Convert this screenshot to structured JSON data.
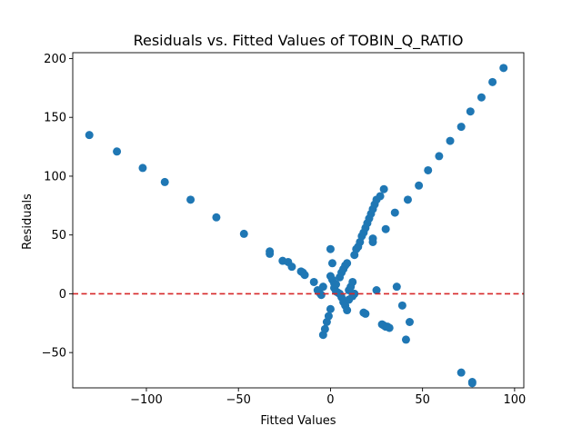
{
  "chart_data": {
    "type": "scatter",
    "title": "Residuals vs. Fitted Values of TOBIN_Q_RATIO",
    "xlabel": "Fitted Values",
    "ylabel": "Residuals",
    "xlim": [
      -140,
      105
    ],
    "ylim": [
      -80,
      205
    ],
    "xticks": [
      -100,
      -50,
      0,
      50,
      100
    ],
    "yticks": [
      -50,
      0,
      50,
      100,
      150,
      200
    ],
    "grid": false,
    "point_color": "#1f77b4",
    "reference_line": {
      "y": 0,
      "color": "#d62728",
      "style": "dashed"
    },
    "points": [
      [
        -131,
        135
      ],
      [
        -116,
        121
      ],
      [
        -102,
        107
      ],
      [
        -90,
        95
      ],
      [
        -76,
        80
      ],
      [
        -62,
        65
      ],
      [
        -47,
        51
      ],
      [
        -33,
        36
      ],
      [
        -33,
        34
      ],
      [
        -26,
        28
      ],
      [
        -23,
        27
      ],
      [
        -21,
        23
      ],
      [
        -16,
        19
      ],
      [
        -15,
        18
      ],
      [
        -14,
        16
      ],
      [
        -9,
        10
      ],
      [
        -7,
        3
      ],
      [
        -6,
        1
      ],
      [
        -5,
        -1
      ],
      [
        -4,
        6
      ],
      [
        -4,
        -35
      ],
      [
        -3,
        -30
      ],
      [
        -2,
        -24
      ],
      [
        -1,
        -19
      ],
      [
        0,
        -13
      ],
      [
        0,
        38
      ],
      [
        1,
        26
      ],
      [
        0,
        15
      ],
      [
        1,
        12
      ],
      [
        2,
        9
      ],
      [
        2,
        5
      ],
      [
        3,
        2
      ],
      [
        3,
        8
      ],
      [
        4,
        1
      ],
      [
        5,
        0
      ],
      [
        5,
        14
      ],
      [
        6,
        -3
      ],
      [
        6,
        18
      ],
      [
        7,
        -7
      ],
      [
        7,
        21
      ],
      [
        8,
        24
      ],
      [
        8,
        -10
      ],
      [
        9,
        26
      ],
      [
        9,
        -14
      ],
      [
        10,
        3
      ],
      [
        10,
        -5
      ],
      [
        11,
        6
      ],
      [
        12,
        10
      ],
      [
        12,
        -2
      ],
      [
        13,
        0
      ],
      [
        13,
        33
      ],
      [
        14,
        38
      ],
      [
        15,
        40
      ],
      [
        16,
        44
      ],
      [
        17,
        49
      ],
      [
        18,
        52
      ],
      [
        19,
        56
      ],
      [
        20,
        60
      ],
      [
        21,
        64
      ],
      [
        22,
        68
      ],
      [
        23,
        72
      ],
      [
        24,
        76
      ],
      [
        25,
        80
      ],
      [
        27,
        83
      ],
      [
        29,
        89
      ],
      [
        18,
        -16
      ],
      [
        19,
        -17
      ],
      [
        23,
        47
      ],
      [
        23,
        44
      ],
      [
        25,
        3
      ],
      [
        28,
        -26
      ],
      [
        29,
        -27
      ],
      [
        30,
        -28
      ],
      [
        31,
        -28
      ],
      [
        32,
        -29
      ],
      [
        30,
        55
      ],
      [
        35,
        69
      ],
      [
        36,
        6
      ],
      [
        39,
        -10
      ],
      [
        41,
        -39
      ],
      [
        43,
        -24
      ],
      [
        42,
        80
      ],
      [
        48,
        92
      ],
      [
        53,
        105
      ],
      [
        59,
        117
      ],
      [
        65,
        130
      ],
      [
        71,
        142
      ],
      [
        76,
        155
      ],
      [
        82,
        167
      ],
      [
        88,
        180
      ],
      [
        94,
        192
      ],
      [
        71,
        -67
      ],
      [
        77,
        -75
      ],
      [
        77,
        -76
      ]
    ]
  }
}
